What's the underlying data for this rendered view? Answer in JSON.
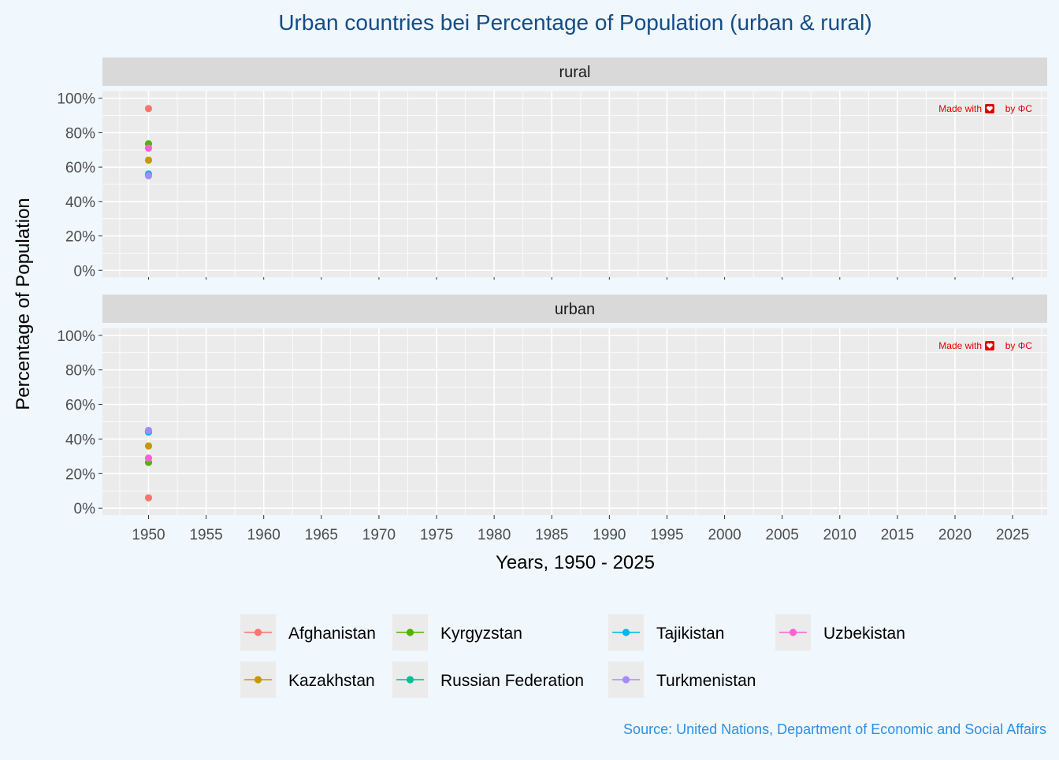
{
  "chart_data": {
    "type": "scatter",
    "title": "Urban countries bei Percentage of Population (urban & rural)",
    "xlabel": "Years, 1950 - 2025",
    "ylabel": "Percentage of Population",
    "caption": "Source: United Nations, Department of Economic and Social Affairs",
    "watermark": {
      "prefix": "Made with",
      "suffix": "by ΦC"
    },
    "xlim": [
      1946,
      2028
    ],
    "ylim": [
      -0.04,
      1.04
    ],
    "x_ticks": [
      1950,
      1955,
      1960,
      1965,
      1970,
      1975,
      1980,
      1985,
      1990,
      1995,
      2000,
      2005,
      2010,
      2015,
      2020,
      2025
    ],
    "x_tick_labels": [
      "1950",
      "1955",
      "1960",
      "1965",
      "1970",
      "1975",
      "1980",
      "1985",
      "1990",
      "1995",
      "2000",
      "2005",
      "2010",
      "2015",
      "2020",
      "2025"
    ],
    "y_ticks": [
      0,
      0.2,
      0.4,
      0.6,
      0.8,
      1.0
    ],
    "y_tick_labels": [
      "0%",
      "20%",
      "40%",
      "60%",
      "80%",
      "100%"
    ],
    "grid": true,
    "legend_position": "bottom",
    "series": [
      {
        "name": "Afghanistan",
        "color": "#F8766D"
      },
      {
        "name": "Kazakhstan",
        "color": "#C49A00"
      },
      {
        "name": "Kyrgyzstan",
        "color": "#53B400"
      },
      {
        "name": "Russian Federation",
        "color": "#00C094"
      },
      {
        "name": "Tajikistan",
        "color": "#00B6EB"
      },
      {
        "name": "Turkmenistan",
        "color": "#A58AFF"
      },
      {
        "name": "Uzbekistan",
        "color": "#FB61D7"
      }
    ],
    "panels": [
      {
        "label": "rural",
        "points": [
          {
            "series": "Afghanistan",
            "x": 1950,
            "y": 0.94
          },
          {
            "series": "Kazakhstan",
            "x": 1950,
            "y": 0.64
          },
          {
            "series": "Kyrgyzstan",
            "x": 1950,
            "y": 0.735
          },
          {
            "series": "Russian Federation",
            "x": 1950,
            "y": 0.555
          },
          {
            "series": "Tajikistan",
            "x": 1950,
            "y": 0.56
          },
          {
            "series": "Turkmenistan",
            "x": 1950,
            "y": 0.55
          },
          {
            "series": "Uzbekistan",
            "x": 1950,
            "y": 0.71
          }
        ]
      },
      {
        "label": "urban",
        "points": [
          {
            "series": "Afghanistan",
            "x": 1950,
            "y": 0.06
          },
          {
            "series": "Kazakhstan",
            "x": 1950,
            "y": 0.36
          },
          {
            "series": "Kyrgyzstan",
            "x": 1950,
            "y": 0.265
          },
          {
            "series": "Russian Federation",
            "x": 1950,
            "y": 0.445
          },
          {
            "series": "Tajikistan",
            "x": 1950,
            "y": 0.44
          },
          {
            "series": "Turkmenistan",
            "x": 1950,
            "y": 0.45
          },
          {
            "series": "Uzbekistan",
            "x": 1950,
            "y": 0.29
          }
        ]
      }
    ]
  }
}
